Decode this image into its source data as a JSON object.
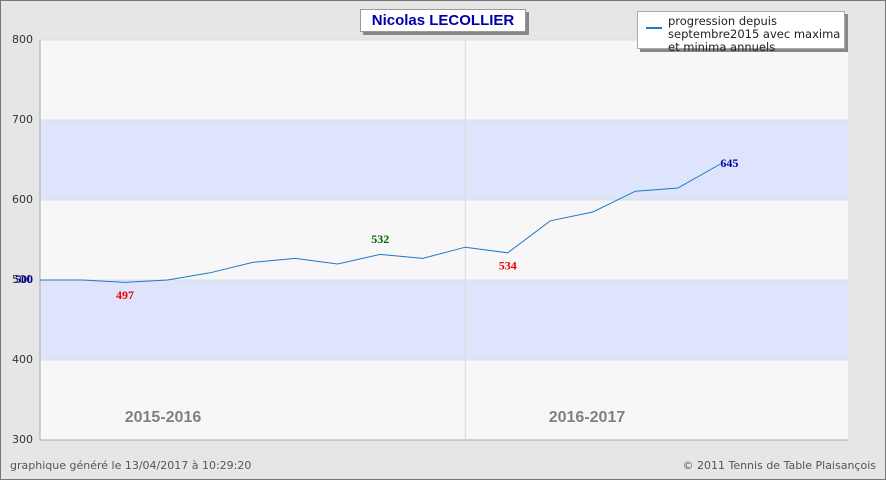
{
  "chart_data": {
    "type": "line",
    "title": "Nicolas LECOLLIER",
    "categories": [
      null,
      null,
      null,
      null,
      null,
      null,
      null,
      null,
      null,
      null,
      null,
      null,
      null,
      null,
      null,
      null,
      null
    ],
    "series": [
      {
        "name": "progression depuis septembre2015 avec maxima et minima annuels",
        "color": "#1f78c8",
        "values": [
          500,
          500,
          497,
          500,
          509,
          522,
          527,
          520,
          532,
          527,
          541,
          534,
          574,
          585,
          611,
          615,
          645
        ]
      }
    ],
    "label_colors": [
      "#00009c",
      null,
      "#ee0000",
      null,
      null,
      null,
      null,
      null,
      "#006400",
      null,
      null,
      "#ee0000",
      null,
      null,
      null,
      null,
      "#00009c"
    ],
    "seasons": [
      {
        "name": "2015-2016",
        "start": 0
      },
      {
        "name": "2016-2017",
        "start": 10
      }
    ],
    "bands": [
      [
        600,
        700
      ],
      [
        400,
        500
      ]
    ],
    "band_color": "#dde4fc",
    "ylim": [
      300,
      800
    ],
    "yticks": [
      300,
      400,
      500,
      600,
      700,
      800
    ],
    "grid": true,
    "legend": "top-right",
    "footer_left": "graphique généré le 13/04/2017 à 10:29:20",
    "footer_right": "© 2011 Tennis de Table Plaisançois"
  }
}
